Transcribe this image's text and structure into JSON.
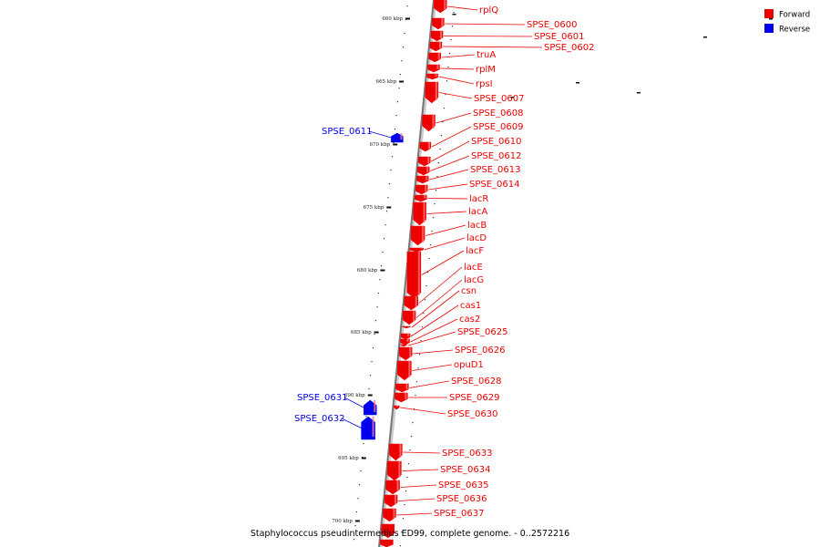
{
  "colors": {
    "forward": "#ee0000",
    "reverse": "#0000ee",
    "axis": "#777777",
    "mark": "#111111"
  },
  "legend": [
    {
      "label": "Forward",
      "strand": "forward"
    },
    {
      "label": "Reverse",
      "strand": "reverse"
    }
  ],
  "title": "Staphylococcus pseudintermedius ED99, complete genome. - 0..2572216",
  "ticks": [
    "660 kbp",
    "665 kbp",
    "670 kbp",
    "675 kbp",
    "680 kbp",
    "685 kbp",
    "690 kbp",
    "695 kbp",
    "700 kbp"
  ],
  "genes": [
    {
      "name": "rplQ",
      "strand": "forward"
    },
    {
      "name": "SPSE_0600",
      "strand": "forward"
    },
    {
      "name": "SPSE_0601",
      "strand": "forward"
    },
    {
      "name": "SPSE_0602",
      "strand": "forward"
    },
    {
      "name": "truA",
      "strand": "forward"
    },
    {
      "name": "rplM",
      "strand": "forward"
    },
    {
      "name": "rpsI",
      "strand": "forward"
    },
    {
      "name": "SPSE_0607",
      "strand": "forward"
    },
    {
      "name": "SPSE_0608",
      "strand": "forward"
    },
    {
      "name": "SPSE_0609",
      "strand": "forward"
    },
    {
      "name": "SPSE_0610",
      "strand": "forward"
    },
    {
      "name": "SPSE_0611",
      "strand": "reverse"
    },
    {
      "name": "SPSE_0612",
      "strand": "forward"
    },
    {
      "name": "SPSE_0613",
      "strand": "forward"
    },
    {
      "name": "SPSE_0614",
      "strand": "forward"
    },
    {
      "name": "lacR",
      "strand": "forward"
    },
    {
      "name": "lacA",
      "strand": "forward"
    },
    {
      "name": "lacB",
      "strand": "forward"
    },
    {
      "name": "lacD",
      "strand": "forward"
    },
    {
      "name": "lacF",
      "strand": "forward"
    },
    {
      "name": "lacE",
      "strand": "forward"
    },
    {
      "name": "lacG",
      "strand": "forward"
    },
    {
      "name": "csn",
      "strand": "forward"
    },
    {
      "name": "cas1",
      "strand": "forward"
    },
    {
      "name": "cas2",
      "strand": "forward"
    },
    {
      "name": "SPSE_0625",
      "strand": "forward"
    },
    {
      "name": "SPSE_0626",
      "strand": "forward"
    },
    {
      "name": "opuD1",
      "strand": "forward"
    },
    {
      "name": "SPSE_0628",
      "strand": "forward"
    },
    {
      "name": "SPSE_0629",
      "strand": "forward"
    },
    {
      "name": "SPSE_0630",
      "strand": "forward"
    },
    {
      "name": "SPSE_0631",
      "strand": "reverse"
    },
    {
      "name": "SPSE_0632",
      "strand": "reverse"
    },
    {
      "name": "SPSE_0633",
      "strand": "forward"
    },
    {
      "name": "SPSE_0634",
      "strand": "forward"
    },
    {
      "name": "SPSE_0635",
      "strand": "forward"
    },
    {
      "name": "SPSE_0636",
      "strand": "forward"
    },
    {
      "name": "SPSE_0637",
      "strand": "forward"
    }
  ]
}
